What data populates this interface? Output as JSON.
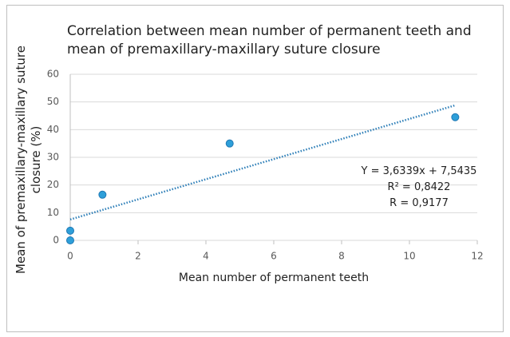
{
  "chart_data": {
    "type": "scatter",
    "title": "Correlation between mean number of permanent teeth and mean of premaxillary-maxillary suture closure",
    "x_label": "Mean number of permanent teeth",
    "y_label": "Mean of premaxillary-maxillary suture closure (%)",
    "x": [
      0,
      0,
      0.95,
      4.7,
      11.35
    ],
    "values": [
      0,
      3.5,
      16.5,
      35,
      44.5
    ],
    "color": "#2e9fd9",
    "xlim": [
      0,
      12
    ],
    "xticks": [
      0,
      2,
      4,
      6,
      8,
      10,
      12
    ],
    "ylim": [
      0,
      60
    ],
    "yticks": [
      0,
      10,
      20,
      30,
      40,
      50,
      60
    ],
    "grid": true,
    "trendline": {
      "slope": 3.6339,
      "intercept": 7.5435,
      "color": "#2e7fb8"
    },
    "annotations": [
      "Y = 3,6339x + 7,5435",
      "R² = 0,8422",
      "R = 0,9177"
    ]
  }
}
